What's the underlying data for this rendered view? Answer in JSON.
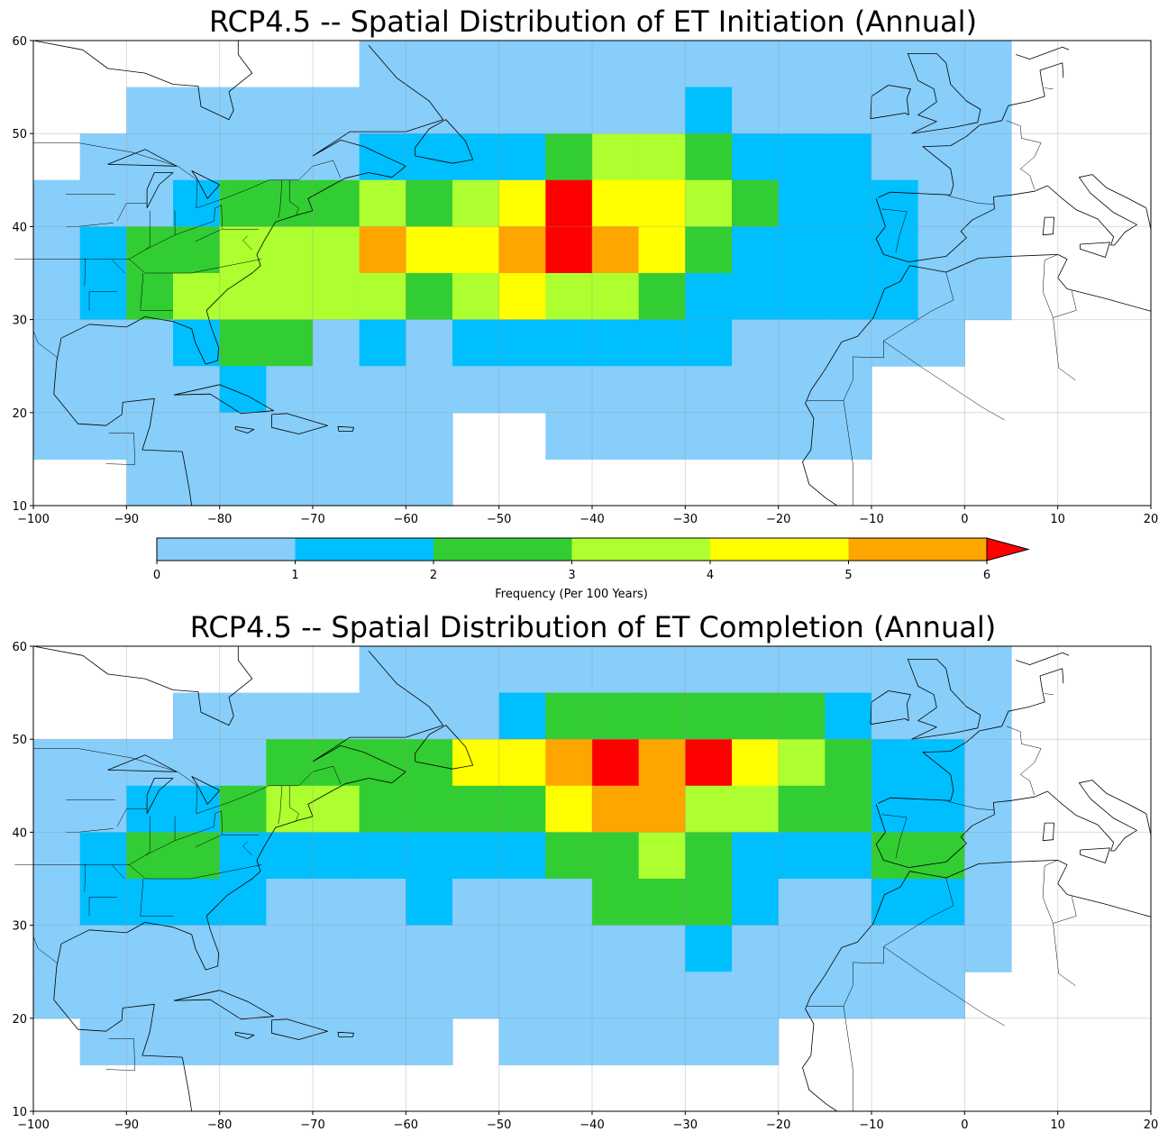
{
  "colorbar": {
    "label": "Frequency (Per 100 Years)",
    "ticks": [
      0,
      1,
      2,
      3,
      4,
      5,
      6
    ],
    "colors": [
      "#87cefa",
      "#00bfff",
      "#32cd32",
      "#adff2f",
      "#ffff00",
      "#ffa500"
    ],
    "over_color": "#ff0000",
    "extend": "max"
  },
  "chart_data": [
    {
      "type": "heatmap",
      "title": "RCP4.5 -- Spatial Distribution of ET Initiation (Annual)",
      "xlim": [
        -100,
        20
      ],
      "ylim": [
        10,
        60
      ],
      "xticks": [
        -100,
        -90,
        -80,
        -70,
        -60,
        -50,
        -40,
        -30,
        -20,
        -10,
        0,
        10,
        20
      ],
      "yticks": [
        10,
        20,
        30,
        40,
        50,
        60
      ],
      "grid": true,
      "cell_size_deg": 5,
      "value_encoding": "0:[0,1) 1:[1,2) 2:[2,3) 3:[3,4) 4:[4,5) 5:[5,6) 6:>6, -1:no data",
      "lon_start": -100,
      "lat_rows_north_to_south": [
        55,
        50,
        45,
        40,
        35,
        30,
        25,
        20,
        15,
        10
      ],
      "cells": [
        [
          -1,
          -1,
          -1,
          -1,
          -1,
          -1,
          -1,
          0,
          0,
          0,
          0,
          0,
          0,
          0,
          0,
          0,
          0,
          0,
          0,
          0,
          0,
          -1,
          -1,
          -1
        ],
        [
          -1,
          -1,
          0,
          0,
          0,
          0,
          0,
          0,
          0,
          0,
          0,
          0,
          0,
          0,
          1,
          0,
          0,
          0,
          0,
          0,
          0,
          -1,
          -1,
          -1
        ],
        [
          -1,
          0,
          0,
          0,
          0,
          0,
          0,
          1,
          1,
          1,
          1,
          2,
          3,
          3,
          2,
          1,
          1,
          1,
          0,
          0,
          0,
          -1,
          -1,
          -1
        ],
        [
          0,
          0,
          0,
          1,
          2,
          2,
          2,
          3,
          2,
          3,
          4,
          6,
          4,
          4,
          3,
          2,
          1,
          1,
          1,
          0,
          0,
          -1,
          -1,
          -1
        ],
        [
          0,
          1,
          2,
          2,
          3,
          3,
          3,
          5,
          4,
          4,
          5,
          6,
          5,
          4,
          2,
          1,
          1,
          1,
          1,
          0,
          0,
          -1,
          -1,
          -1
        ],
        [
          0,
          1,
          2,
          3,
          3,
          3,
          3,
          3,
          2,
          3,
          4,
          3,
          3,
          2,
          1,
          1,
          1,
          1,
          1,
          0,
          0,
          -1,
          -1,
          -1
        ],
        [
          0,
          0,
          0,
          1,
          2,
          2,
          0,
          1,
          0,
          1,
          1,
          1,
          1,
          1,
          1,
          0,
          0,
          0,
          0,
          0,
          -1,
          -1,
          -1,
          -1
        ],
        [
          0,
          0,
          0,
          0,
          1,
          0,
          0,
          0,
          0,
          0,
          0,
          0,
          0,
          0,
          0,
          0,
          0,
          0,
          -1,
          -1,
          -1,
          -1,
          -1,
          -1
        ],
        [
          0,
          0,
          0,
          0,
          0,
          0,
          0,
          0,
          0,
          -1,
          -1,
          0,
          0,
          0,
          0,
          0,
          0,
          0,
          -1,
          -1,
          -1,
          -1,
          -1,
          -1
        ],
        [
          -1,
          -1,
          0,
          0,
          0,
          0,
          0,
          0,
          0,
          -1,
          -1,
          -1,
          -1,
          -1,
          -1,
          -1,
          -1,
          -1,
          -1,
          -1,
          -1,
          -1,
          -1,
          -1
        ]
      ]
    },
    {
      "type": "heatmap",
      "title": "RCP4.5 -- Spatial Distribution of ET Completion (Annual)",
      "xlim": [
        -100,
        20
      ],
      "ylim": [
        10,
        60
      ],
      "xticks": [
        -100,
        -90,
        -80,
        -70,
        -60,
        -50,
        -40,
        -30,
        -20,
        -10,
        0,
        10,
        20
      ],
      "yticks": [
        10,
        20,
        30,
        40,
        50,
        60
      ],
      "grid": true,
      "cell_size_deg": 5,
      "value_encoding": "0:[0,1) 1:[1,2) 2:[2,3) 3:[3,4) 4:[4,5) 5:[5,6) 6:>6, -1:no data",
      "lon_start": -100,
      "lat_rows_north_to_south": [
        55,
        50,
        45,
        40,
        35,
        30,
        25,
        20,
        15,
        10
      ],
      "cells": [
        [
          -1,
          -1,
          -1,
          -1,
          -1,
          -1,
          -1,
          0,
          0,
          0,
          0,
          0,
          0,
          0,
          0,
          0,
          0,
          0,
          0,
          0,
          0,
          -1,
          -1,
          -1
        ],
        [
          -1,
          -1,
          -1,
          0,
          0,
          0,
          0,
          0,
          0,
          0,
          1,
          2,
          2,
          2,
          2,
          2,
          2,
          1,
          0,
          0,
          0,
          -1,
          -1,
          -1
        ],
        [
          0,
          0,
          0,
          0,
          0,
          2,
          2,
          2,
          2,
          4,
          4,
          5,
          6,
          5,
          6,
          4,
          3,
          2,
          1,
          1,
          0,
          -1,
          -1,
          -1
        ],
        [
          0,
          0,
          1,
          1,
          2,
          3,
          3,
          2,
          2,
          2,
          2,
          4,
          5,
          5,
          3,
          3,
          2,
          2,
          1,
          1,
          0,
          -1,
          -1,
          -1
        ],
        [
          0,
          1,
          2,
          2,
          1,
          1,
          1,
          1,
          1,
          1,
          1,
          2,
          2,
          3,
          2,
          1,
          1,
          1,
          2,
          2,
          0,
          -1,
          -1,
          -1
        ],
        [
          0,
          1,
          1,
          1,
          1,
          0,
          0,
          0,
          1,
          0,
          0,
          0,
          2,
          2,
          2,
          1,
          0,
          0,
          1,
          1,
          0,
          -1,
          -1,
          -1
        ],
        [
          0,
          0,
          0,
          0,
          0,
          0,
          0,
          0,
          0,
          0,
          0,
          0,
          0,
          0,
          1,
          0,
          0,
          0,
          0,
          0,
          0,
          -1,
          -1,
          -1
        ],
        [
          0,
          0,
          0,
          0,
          0,
          0,
          0,
          0,
          0,
          0,
          0,
          0,
          0,
          0,
          0,
          0,
          0,
          0,
          0,
          0,
          -1,
          -1,
          -1,
          -1
        ],
        [
          -1,
          0,
          0,
          0,
          0,
          0,
          0,
          0,
          0,
          -1,
          0,
          0,
          0,
          0,
          0,
          0,
          -1,
          -1,
          -1,
          -1,
          -1,
          -1,
          -1,
          -1
        ],
        [
          -1,
          -1,
          -1,
          -1,
          -1,
          -1,
          -1,
          -1,
          -1,
          -1,
          -1,
          -1,
          -1,
          -1,
          -1,
          -1,
          -1,
          -1,
          -1,
          -1,
          -1,
          -1,
          -1,
          -1
        ]
      ]
    }
  ]
}
